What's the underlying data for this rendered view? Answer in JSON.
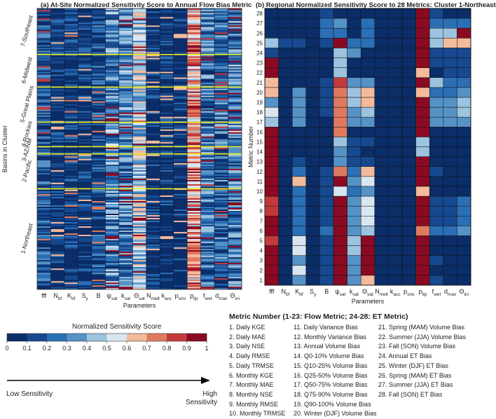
{
  "panel_a": {
    "title": "(a) At-Site Normalized Sensitivity Score to Annual Flow Bias Metric",
    "ylabel": "Basins in Cluster",
    "xlabel": "Parameters"
  },
  "panel_b": {
    "title": "(b) Regional Normalized Sensitivity Score to 28 Metrics: Cluster 1-Northeast",
    "ylabel": "Metric Number",
    "xlabel": "Parameters"
  },
  "colorbar": {
    "title": "Normalized Sensitivity Score",
    "ticks": [
      "0",
      "0.1",
      "0.2",
      "0.3",
      "0.4",
      "0.5",
      "0.6",
      "0.7",
      "0.8",
      "0.9",
      "1"
    ],
    "colors": [
      "#0b2d68",
      "#16498f",
      "#2b6fb5",
      "#5592c6",
      "#9cc3df",
      "#d8e6f1",
      "#f4ba9c",
      "#e07a5f",
      "#c23a3c",
      "#8a0a22"
    ]
  },
  "arrow": {
    "low": "Low Sensitivity",
    "high": "High Sensitivity"
  },
  "metric_legend": {
    "title": "Metric Number (1-23: Flow Metric; 24-28: ET Metric)",
    "col1": [
      "1. Daily KGE",
      "2. Daily MAE",
      "3. Daily NSE",
      "4. Daily RMSE",
      "5. Daily TRMSE",
      "6. Monthly KGE",
      "7. Monthly MAE",
      "8. Monthly NSE",
      "9. Monthly RMSE",
      "10. Monthly TRMSE"
    ],
    "col2": [
      "11. Daily Variance Bias",
      "12. Monthly Variance Bias",
      "13. Annual Volume Bias",
      "14. Q0-10% Volume Bias",
      "15. Q10-25% Volume Bias",
      "16. Q25-50% Volume Bias",
      "17. Q50-75% Volume Bias",
      "18. Q75-90% Volume Bias",
      "19. Q90-100% Volume Bias",
      "20. Winter (DJF) Volume Bias"
    ],
    "col3": [
      "21. Spring (MAM) Volume Bias",
      "22. Summer (JJA) Volume Bias",
      "23. Fall (SON) Volume Bias",
      "24. Annual ET Bias",
      "25. Winter (DJF) ET Bias",
      "26. Spring (MAM) ET Bias",
      "27. Summer (JJA) ET Bias",
      "28. Fall (SON) ET Bias"
    ]
  },
  "chart_data": [
    {
      "type": "heatmap",
      "title": "(a) At-Site Normalized Sensitivity Score to Annual Flow Bias Metric",
      "xlabel": "Parameters",
      "ylabel": "Basins in Cluster",
      "parameters": [
        {
          "base": "fff",
          "sub": ""
        },
        {
          "base": "N",
          "sub": "bf"
        },
        {
          "base": "K",
          "sub": "bf"
        },
        {
          "base": "S",
          "sub": "y"
        },
        {
          "base": "B",
          "sub": ""
        },
        {
          "base": "ψ",
          "sub": "sat"
        },
        {
          "base": "k",
          "sub": "sat"
        },
        {
          "base": "Θ",
          "sub": "sat"
        },
        {
          "base": "N",
          "sub": "melt"
        },
        {
          "base": "k",
          "sub": "acc"
        },
        {
          "base": "p",
          "sub": "sno"
        },
        {
          "base": "p",
          "sub": "lip"
        },
        {
          "base": "f",
          "sub": "wet"
        },
        {
          "base": "d",
          "sub": "max"
        },
        {
          "base": "Θ",
          "sub": "ini"
        }
      ],
      "clusters": [
        "1-Northeast",
        "2-Pacific",
        "3-AZ/NM",
        "4-Rockies",
        "5-Great Plains",
        "6-Midwest",
        "7-Southeast"
      ],
      "cluster_fractions": [
        0.358,
        0.124,
        0.026,
        0.087,
        0.125,
        0.116,
        0.164
      ],
      "column_mean_scores": [
        0.18,
        0.04,
        0.08,
        0.05,
        0.12,
        0.32,
        0.3,
        0.48,
        0.03,
        0.03,
        0.03,
        0.72,
        0.28,
        0.22,
        0.3
      ],
      "zlim": [
        0,
        1
      ]
    },
    {
      "type": "heatmap",
      "title": "(b) Regional Normalized Sensitivity Score to 28 Metrics: Cluster 1-Northeast",
      "xlabel": "Parameters",
      "ylabel": "Metric Number",
      "parameters": [
        {
          "base": "fff",
          "sub": ""
        },
        {
          "base": "N",
          "sub": "bf"
        },
        {
          "base": "K",
          "sub": "bf"
        },
        {
          "base": "S",
          "sub": "y"
        },
        {
          "base": "B",
          "sub": ""
        },
        {
          "base": "ψ",
          "sub": "sat"
        },
        {
          "base": "k",
          "sub": "sat"
        },
        {
          "base": "Θ",
          "sub": "sat"
        },
        {
          "base": "N",
          "sub": "melt"
        },
        {
          "base": "k",
          "sub": "acc"
        },
        {
          "base": "p",
          "sub": "sno"
        },
        {
          "base": "p",
          "sub": "lip"
        },
        {
          "base": "f",
          "sub": "wet"
        },
        {
          "base": "d",
          "sub": "max"
        },
        {
          "base": "Θ",
          "sub": "ini"
        }
      ],
      "metrics": [
        1,
        2,
        3,
        4,
        5,
        6,
        7,
        8,
        9,
        10,
        11,
        12,
        13,
        14,
        15,
        16,
        17,
        18,
        19,
        20,
        21,
        22,
        23,
        24,
        25,
        26,
        27,
        28
      ],
      "zlim": [
        0,
        1
      ],
      "values": [
        [
          0.95,
          0.05,
          0.3,
          0.05,
          0.1,
          1.0,
          0.3,
          0.6,
          0.02,
          0.02,
          0.02,
          0.95,
          0.1,
          0.05,
          0.05
        ],
        [
          0.9,
          0.05,
          0.55,
          0.05,
          0.1,
          0.95,
          0.35,
          0.95,
          0.02,
          0.02,
          0.02,
          0.95,
          0.05,
          0.05,
          0.05
        ],
        [
          0.95,
          0.05,
          0.3,
          0.05,
          0.1,
          1.0,
          0.3,
          0.95,
          0.02,
          0.02,
          0.02,
          0.95,
          0.1,
          0.05,
          0.05
        ],
        [
          0.95,
          0.05,
          0.55,
          0.05,
          0.1,
          0.9,
          0.4,
          0.95,
          0.02,
          0.02,
          0.02,
          0.95,
          0.05,
          0.05,
          0.05
        ],
        [
          0.85,
          0.05,
          0.55,
          0.05,
          0.1,
          0.9,
          0.4,
          0.95,
          0.02,
          0.02,
          0.02,
          0.9,
          0.05,
          0.05,
          0.05
        ],
        [
          0.95,
          0.05,
          0.2,
          0.05,
          0.2,
          0.9,
          0.3,
          0.4,
          0.02,
          0.02,
          0.02,
          0.7,
          0.2,
          0.2,
          0.3
        ],
        [
          0.95,
          0.05,
          0.25,
          0.05,
          0.1,
          0.95,
          0.35,
          0.5,
          0.02,
          0.02,
          0.02,
          0.95,
          0.1,
          0.15,
          0.2
        ],
        [
          0.85,
          0.05,
          0.25,
          0.05,
          0.1,
          0.95,
          0.35,
          0.5,
          0.02,
          0.02,
          0.02,
          0.95,
          0.1,
          0.15,
          0.2
        ],
        [
          0.85,
          0.05,
          0.25,
          0.05,
          0.1,
          0.95,
          0.35,
          0.5,
          0.02,
          0.02,
          0.02,
          0.95,
          0.1,
          0.15,
          0.2
        ],
        [
          0.95,
          0.05,
          0.25,
          0.05,
          0.1,
          0.55,
          0.25,
          0.3,
          0.02,
          0.02,
          0.02,
          0.65,
          0.05,
          0.05,
          0.05
        ],
        [
          0.9,
          0.05,
          0.65,
          0.05,
          0.1,
          0.95,
          0.3,
          0.55,
          0.02,
          0.02,
          0.02,
          0.95,
          0.05,
          0.05,
          0.05
        ],
        [
          0.95,
          0.05,
          0.2,
          0.05,
          0.1,
          0.7,
          0.25,
          0.6,
          0.02,
          0.02,
          0.02,
          0.95,
          0.1,
          0.05,
          0.05
        ],
        [
          0.95,
          0.05,
          0.1,
          0.05,
          0.05,
          0.3,
          0.1,
          0.15,
          0.02,
          0.02,
          0.02,
          0.95,
          0.05,
          0.05,
          0.05
        ],
        [
          0.95,
          0.05,
          0.05,
          0.05,
          0.05,
          0.35,
          0.1,
          0.05,
          0.02,
          0.02,
          0.02,
          0.4,
          0.05,
          0.05,
          0.05
        ],
        [
          0.95,
          0.05,
          0.05,
          0.05,
          0.05,
          0.45,
          0.1,
          0.1,
          0.02,
          0.02,
          0.02,
          0.4,
          0.05,
          0.05,
          0.05
        ],
        [
          0.95,
          0.05,
          0.05,
          0.05,
          0.05,
          0.7,
          0.05,
          0.05,
          0.02,
          0.02,
          0.02,
          0.95,
          0.05,
          0.05,
          0.05
        ],
        [
          0.4,
          0.05,
          0.3,
          0.05,
          0.05,
          0.7,
          0.35,
          0.3,
          0.02,
          0.02,
          0.02,
          0.9,
          0.3,
          0.35,
          0.3
        ],
        [
          0.5,
          0.05,
          0.35,
          0.05,
          0.1,
          0.7,
          0.35,
          0.4,
          0.02,
          0.02,
          0.02,
          0.9,
          0.3,
          0.35,
          0.4
        ],
        [
          0.35,
          0.05,
          0.3,
          0.05,
          0.1,
          0.7,
          0.45,
          0.6,
          0.02,
          0.02,
          0.02,
          0.9,
          0.3,
          0.35,
          0.45
        ],
        [
          0.6,
          0.05,
          0.3,
          0.05,
          0.1,
          0.75,
          0.45,
          0.6,
          0.02,
          0.02,
          0.02,
          0.6,
          0.25,
          0.2,
          0.3
        ],
        [
          0.65,
          0.05,
          0.05,
          0.05,
          0.1,
          0.85,
          0.35,
          0.3,
          0.02,
          0.02,
          0.02,
          0.95,
          0.4,
          0.2,
          0.25
        ],
        [
          0.95,
          0.05,
          0.05,
          0.05,
          0.05,
          0.4,
          0.05,
          0.05,
          0.02,
          0.02,
          0.02,
          0.6,
          0.05,
          0.1,
          0.1
        ],
        [
          0.9,
          0.05,
          0.05,
          0.05,
          0.05,
          0.4,
          0.05,
          0.05,
          0.02,
          0.02,
          0.02,
          0.95,
          0.1,
          0.15,
          0.1
        ],
        [
          0.1,
          0.05,
          0.05,
          0.05,
          0.05,
          0.4,
          0.3,
          0.05,
          0.02,
          0.02,
          0.02,
          0.95,
          0.1,
          0.15,
          0.1
        ],
        [
          0.4,
          0.1,
          0.1,
          0.05,
          0.15,
          0.95,
          0.2,
          0.25,
          0.02,
          0.02,
          0.02,
          0.95,
          0.4,
          0.6,
          0.6
        ],
        [
          0.05,
          0.05,
          0.05,
          0.05,
          0.2,
          0.2,
          0.05,
          0.25,
          0.02,
          0.02,
          0.02,
          0.95,
          0.4,
          0.4,
          0.9
        ],
        [
          0.05,
          0.05,
          0.05,
          0.05,
          0.2,
          0.3,
          0.05,
          0.2,
          0.02,
          0.02,
          0.02,
          0.95,
          0.25,
          0.2,
          0.25
        ],
        [
          0.05,
          0.05,
          0.05,
          0.05,
          0.1,
          0.05,
          0.05,
          0.05,
          0.02,
          0.02,
          0.02,
          0.95,
          0.1,
          0.05,
          0.05
        ]
      ]
    }
  ]
}
